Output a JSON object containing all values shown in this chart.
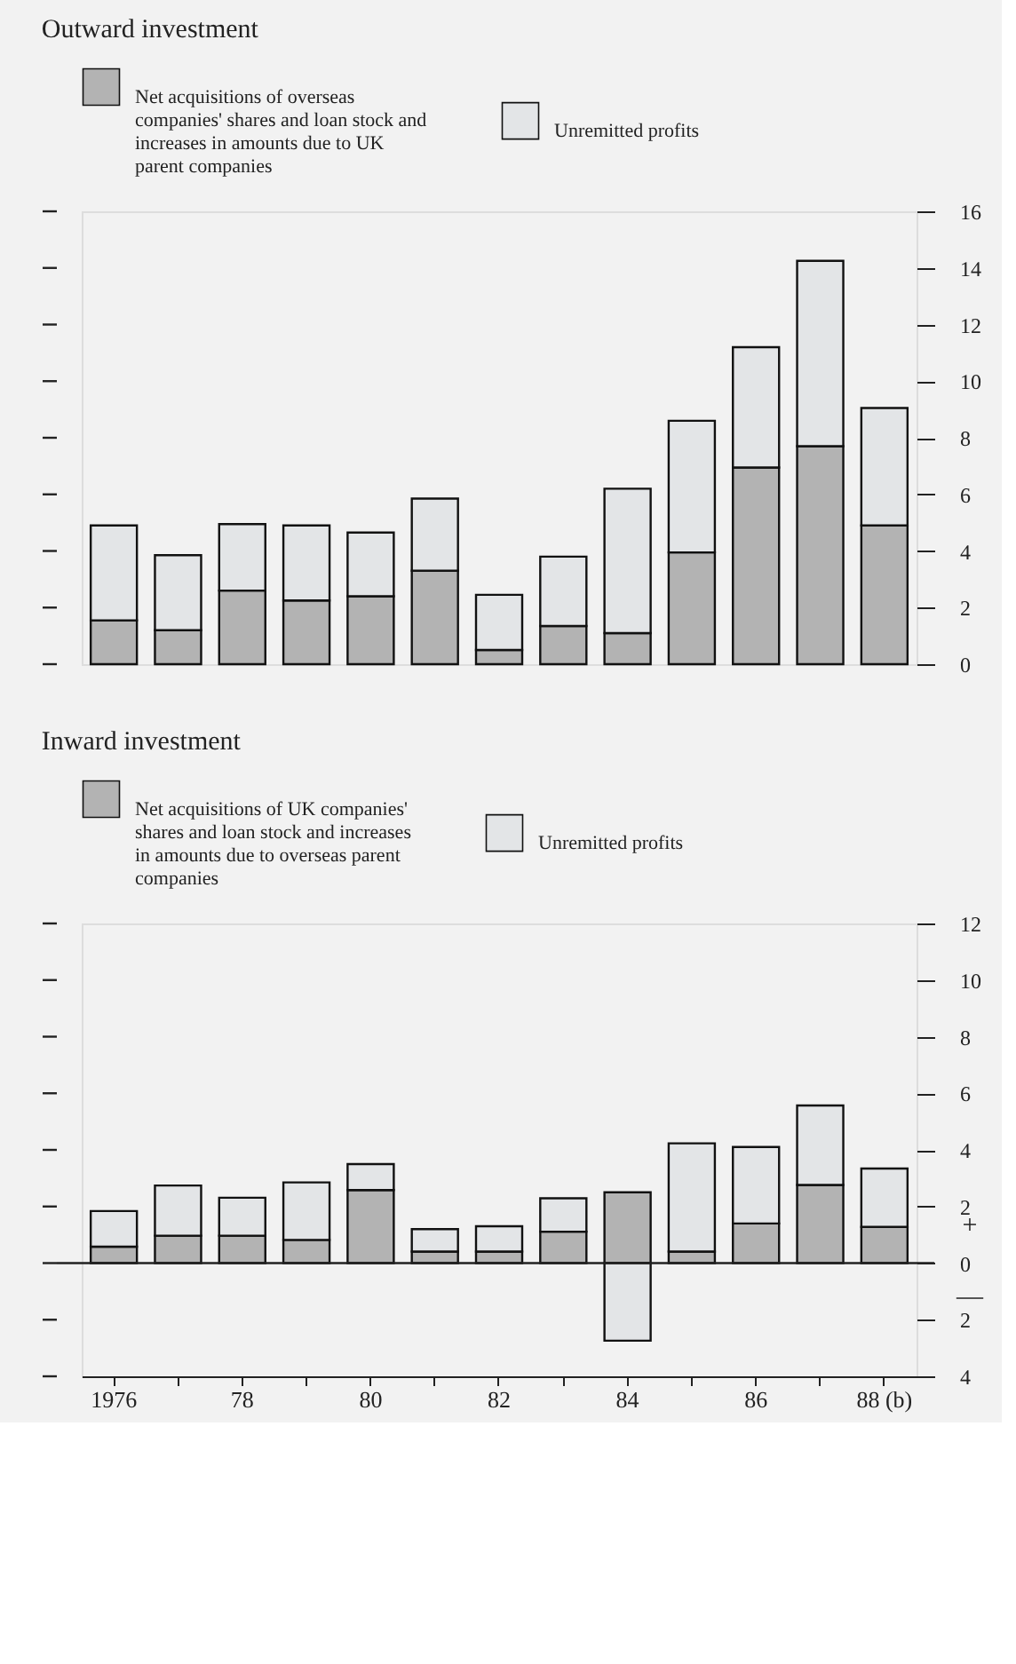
{
  "chart_data": [
    {
      "type": "bar",
      "title": "Outward investment",
      "stacked": true,
      "legend": "top",
      "tick_labels": "y",
      "categories": [
        null,
        null,
        null,
        null,
        null,
        null,
        null,
        null,
        null,
        null,
        null,
        null,
        null
      ],
      "series": [
        {
          "name": "Net acquisitions of overseas companies' shares and loan stock and increases in amounts due to UK parent companies",
          "color": "#b3b3b3",
          "values": [
            1.55,
            1.2,
            2.6,
            2.25,
            2.4,
            3.3,
            0.5,
            1.35,
            1.1,
            3.95,
            6.95,
            7.7,
            4.9
          ]
        },
        {
          "name": "Unremitted profits",
          "color": "#e3e5e7",
          "values": [
            3.35,
            2.65,
            2.35,
            2.65,
            2.25,
            2.55,
            1.95,
            2.45,
            5.1,
            4.65,
            4.25,
            6.55,
            4.15
          ]
        }
      ],
      "ylim": [
        0,
        16
      ],
      "yticks": [
        0,
        2,
        4,
        6,
        8,
        10,
        12,
        14,
        16
      ]
    },
    {
      "type": "bar",
      "title": "Inward investment",
      "stacked": true,
      "legend": "top",
      "categories": [
        "1976",
        null,
        "78",
        null,
        "80",
        null,
        "82",
        null,
        "84",
        null,
        "86",
        null,
        "88 (b)"
      ],
      "series": [
        {
          "name": "Net acquisitions of UK companies' shares and loan stock and increases in amounts due to overseas parent companies",
          "color": "#b3b3b3",
          "values": [
            0.58,
            0.97,
            0.97,
            0.82,
            2.58,
            0.41,
            0.41,
            1.11,
            2.5,
            0.41,
            1.4,
            2.76,
            1.28
          ]
        },
        {
          "name": "Unremitted profits",
          "color": "#e3e5e7",
          "values": [
            1.26,
            1.77,
            1.34,
            2.03,
            0.92,
            0.79,
            0.89,
            1.18,
            -2.74,
            3.82,
            2.7,
            2.81,
            2.06
          ]
        }
      ],
      "ylim": [
        -4,
        12
      ],
      "yticks": [
        {
          "value": -4,
          "label": "4"
        },
        {
          "value": -2,
          "label": "2"
        },
        0,
        2,
        4,
        6,
        8,
        10,
        12
      ],
      "ref_lines": [
        {
          "axis": "y",
          "value": 0
        }
      ],
      "annotations": [
        "+",
        "—"
      ]
    }
  ]
}
